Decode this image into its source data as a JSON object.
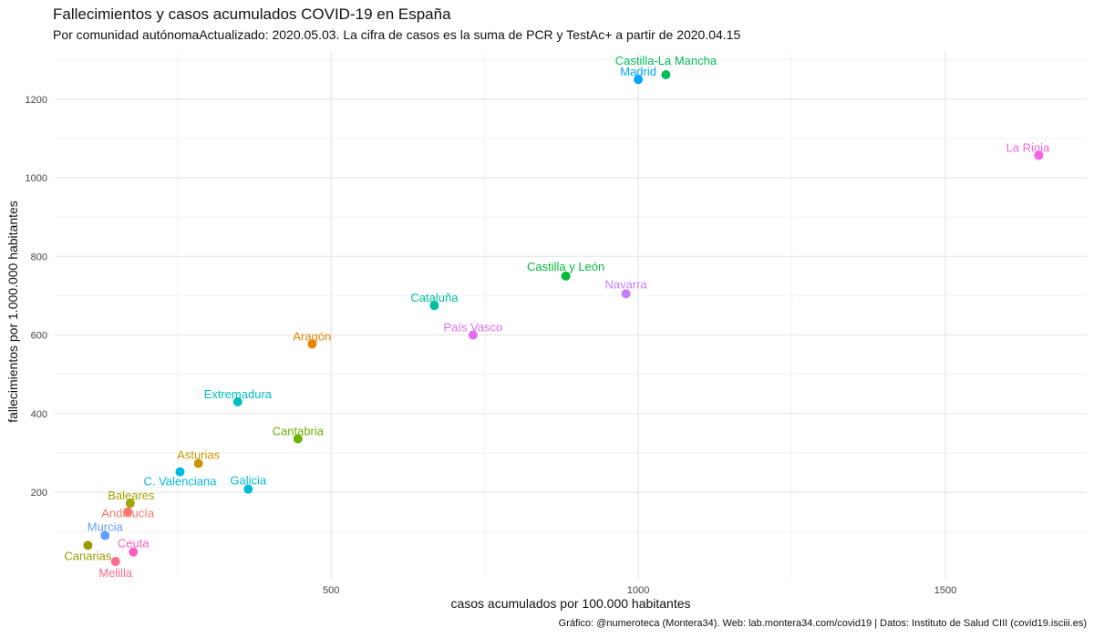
{
  "chart_data": {
    "type": "scatter",
    "title": "Fallecimientos y casos acumulados COVID-19 en España",
    "subtitle": "Por comunidad autónomaActualizado: 2020.05.03. La cifra de casos es la suma de PCR y TestAc+ a partir de 2020.04.15",
    "caption": "Gráfico: @numeroteca (Montera34). Web: lab.montera34.com/covid19 | Datos: Instituto de Salud CIII (covid19.isciii.es)",
    "xlabel": "casos acumulados por 100.000 habitantes",
    "ylabel": "fallecimientos por 1.000.000 habitantes",
    "xlim": [
      50,
      1730
    ],
    "ylim": [
      -20,
      1320
    ],
    "xticks": [
      500,
      1000,
      1500
    ],
    "yticks": [
      200,
      400,
      600,
      800,
      1000,
      1200
    ],
    "grid": true,
    "legend": "none",
    "points": [
      {
        "label": "Castilla-La Mancha",
        "x": 1045,
        "y": 1262,
        "color": "#00BC59"
      },
      {
        "label": "Madrid",
        "x": 1000,
        "y": 1250,
        "color": "#00A5FF"
      },
      {
        "label": "La Rioja",
        "x": 1652,
        "y": 1057,
        "color": "#F564E3"
      },
      {
        "label": "Castilla y León",
        "x": 882,
        "y": 750,
        "color": "#00BA38"
      },
      {
        "label": "Navarra",
        "x": 980,
        "y": 705,
        "color": "#C77CFF"
      },
      {
        "label": "Cataluña",
        "x": 668,
        "y": 675,
        "color": "#00C19A"
      },
      {
        "label": "País Vasco",
        "x": 731,
        "y": 600,
        "color": "#E76BF3"
      },
      {
        "label": "Aragón",
        "x": 469,
        "y": 577,
        "color": "#E58700"
      },
      {
        "label": "Extremadura",
        "x": 348,
        "y": 430,
        "color": "#00BFC4"
      },
      {
        "label": "Cantabria",
        "x": 446,
        "y": 336,
        "color": "#6BB100"
      },
      {
        "label": "Asturias",
        "x": 284,
        "y": 273,
        "color": "#C99800"
      },
      {
        "label": "C. Valenciana",
        "x": 254,
        "y": 252,
        "color": "#00B9E3"
      },
      {
        "label": "Galicia",
        "x": 365,
        "y": 208,
        "color": "#00BCD8"
      },
      {
        "label": "Baleares",
        "x": 173,
        "y": 172,
        "color": "#A3A500"
      },
      {
        "label": "Andalucía",
        "x": 169,
        "y": 150,
        "color": "#F8766D"
      },
      {
        "label": "Murcia",
        "x": 132,
        "y": 90,
        "color": "#619CFF"
      },
      {
        "label": "Canarias",
        "x": 104,
        "y": 65,
        "color": "#9A9A00"
      },
      {
        "label": "Ceuta",
        "x": 178,
        "y": 48,
        "color": "#FF61C3"
      },
      {
        "label": "Melilla",
        "x": 149,
        "y": 24,
        "color": "#FF6C91"
      }
    ]
  }
}
